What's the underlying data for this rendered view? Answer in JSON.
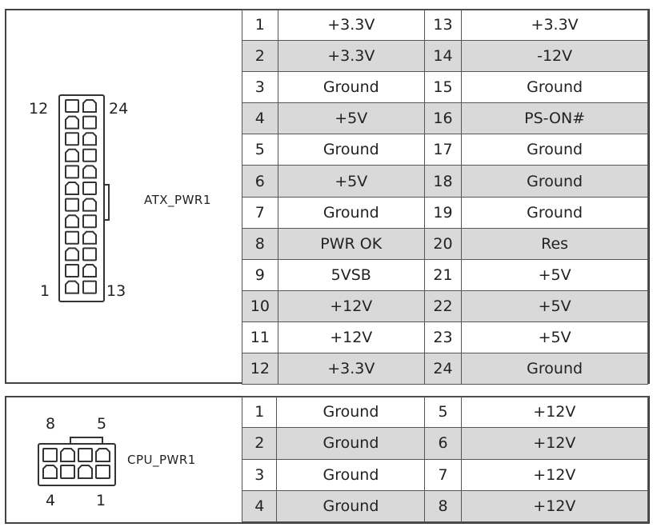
{
  "atx": {
    "name": "ATX_PWR1",
    "pin_labels": {
      "top_left": "12",
      "top_right": "24",
      "bottom_left": "1",
      "bottom_right": "13"
    },
    "rows": [
      {
        "a_pin": "1",
        "a_sig": "+3.3V",
        "b_pin": "13",
        "b_sig": "+3.3V"
      },
      {
        "a_pin": "2",
        "a_sig": "+3.3V",
        "b_pin": "14",
        "b_sig": "-12V"
      },
      {
        "a_pin": "3",
        "a_sig": "Ground",
        "b_pin": "15",
        "b_sig": "Ground"
      },
      {
        "a_pin": "4",
        "a_sig": "+5V",
        "b_pin": "16",
        "b_sig": "PS-ON#"
      },
      {
        "a_pin": "5",
        "a_sig": "Ground",
        "b_pin": "17",
        "b_sig": "Ground"
      },
      {
        "a_pin": "6",
        "a_sig": "+5V",
        "b_pin": "18",
        "b_sig": "Ground"
      },
      {
        "a_pin": "7",
        "a_sig": "Ground",
        "b_pin": "19",
        "b_sig": "Ground"
      },
      {
        "a_pin": "8",
        "a_sig": "PWR OK",
        "b_pin": "20",
        "b_sig": "Res"
      },
      {
        "a_pin": "9",
        "a_sig": "5VSB",
        "b_pin": "21",
        "b_sig": "+5V"
      },
      {
        "a_pin": "10",
        "a_sig": "+12V",
        "b_pin": "22",
        "b_sig": "+5V"
      },
      {
        "a_pin": "11",
        "a_sig": "+12V",
        "b_pin": "23",
        "b_sig": "+5V"
      },
      {
        "a_pin": "12",
        "a_sig": "+3.3V",
        "b_pin": "24",
        "b_sig": "Ground"
      }
    ]
  },
  "cpu": {
    "name": "CPU_PWR1",
    "pin_labels": {
      "top_left": "8",
      "top_right": "5",
      "bottom_left": "4",
      "bottom_right": "1"
    },
    "rows": [
      {
        "a_pin": "1",
        "a_sig": "Ground",
        "b_pin": "5",
        "b_sig": "+12V"
      },
      {
        "a_pin": "2",
        "a_sig": "Ground",
        "b_pin": "6",
        "b_sig": "+12V"
      },
      {
        "a_pin": "3",
        "a_sig": "Ground",
        "b_pin": "7",
        "b_sig": "+12V"
      },
      {
        "a_pin": "4",
        "a_sig": "Ground",
        "b_pin": "8",
        "b_sig": "+12V"
      }
    ]
  },
  "colors": {
    "border": "#444444",
    "shade": "#d9d9d9"
  },
  "icons": {
    "atx_connector": "atx-24pin-connector-icon",
    "cpu_connector": "cpu-8pin-connector-icon"
  }
}
